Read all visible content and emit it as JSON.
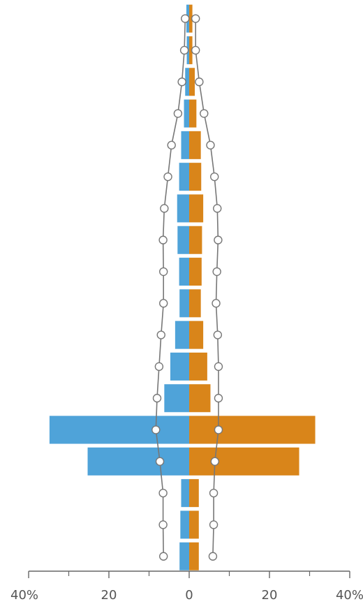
{
  "colors": {
    "left_bar": "#4fa3d9",
    "right_bar": "#d9851a",
    "marker_line": "#777777",
    "marker_fill": "#ffffff",
    "axis": "#666666"
  },
  "chart_data": {
    "type": "bar",
    "orientation": "horizontal-population-pyramid",
    "title": "",
    "xlabel": "",
    "ylabel": "",
    "xlim": [
      -40,
      40
    ],
    "x_ticks": [
      {
        "value": -40,
        "label": "40%"
      },
      {
        "value": -20,
        "label": "20"
      },
      {
        "value": 0,
        "label": "0"
      },
      {
        "value": 20,
        "label": "20"
      },
      {
        "value": 40,
        "label": "40%"
      }
    ],
    "x_minor_ticks": [
      -30,
      -10,
      10,
      30
    ],
    "grid": false,
    "rows": 18,
    "series": [
      {
        "side": "left",
        "values": [
          0.7,
          0.6,
          1.0,
          1.3,
          2.0,
          2.5,
          3.0,
          2.9,
          2.5,
          2.4,
          3.5,
          4.7,
          6.2,
          34.8,
          25.3,
          2.0,
          2.2,
          2.4
        ]
      },
      {
        "side": "right",
        "values": [
          0.8,
          0.8,
          1.4,
          1.8,
          2.9,
          3.0,
          3.5,
          3.2,
          3.1,
          2.9,
          3.5,
          4.5,
          5.3,
          31.4,
          27.4,
          2.4,
          2.4,
          2.4
        ]
      }
    ],
    "line_markers": [
      {
        "side": "left",
        "values": [
          -1.0,
          -1.2,
          -1.8,
          -2.8,
          -4.4,
          -5.3,
          -6.2,
          -6.5,
          -6.4,
          -6.4,
          -7.0,
          -7.5,
          -8.0,
          -8.3,
          -7.3,
          -6.5,
          -6.5,
          -6.4
        ]
      },
      {
        "side": "right",
        "values": [
          1.6,
          1.6,
          2.5,
          3.7,
          5.3,
          6.3,
          7.0,
          7.2,
          6.9,
          6.7,
          7.1,
          7.3,
          7.3,
          7.3,
          6.4,
          6.1,
          6.1,
          5.9
        ]
      }
    ]
  }
}
